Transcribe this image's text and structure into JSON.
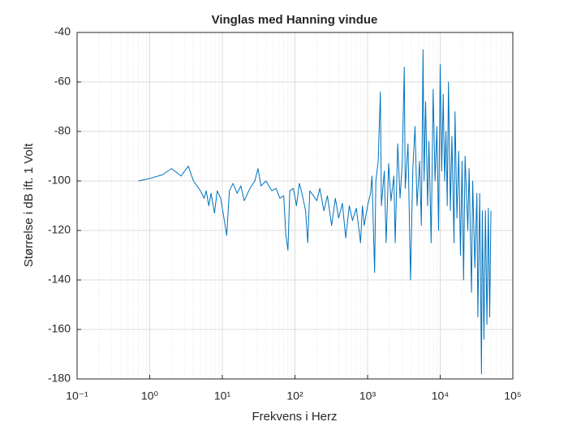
{
  "chart_data": {
    "type": "line",
    "title": "Vinglas med Hanning vindue",
    "xlabel": "Frekvens i Herz",
    "ylabel": "Størrelse i dB ift. 1 Volt",
    "xscale": "log",
    "grid": true,
    "minor_grid": true,
    "color": "#0072bd",
    "xlim": [
      0.1,
      100000
    ],
    "xticks": [
      {
        "value": 0.1,
        "label": "10⁻¹"
      },
      {
        "value": 1,
        "label": "10⁰"
      },
      {
        "value": 10,
        "label": "10¹"
      },
      {
        "value": 100,
        "label": "10²"
      },
      {
        "value": 1000,
        "label": "10³"
      },
      {
        "value": 10000,
        "label": "10⁴"
      },
      {
        "value": 100000,
        "label": "10⁵"
      }
    ],
    "ylim": [
      -180,
      -40
    ],
    "yticks": [
      -40,
      -60,
      -80,
      -100,
      -120,
      -140,
      -160,
      -180
    ],
    "x": [
      0.7,
      1.0,
      1.5,
      2.0,
      2.7,
      3.4,
      4.0,
      5.0,
      5.6,
      6.0,
      6.5,
      7.0,
      7.8,
      8.5,
      9.5,
      11.5,
      12.5,
      14,
      16,
      18,
      20,
      24,
      28,
      31,
      34,
      40,
      48,
      55,
      62,
      70,
      75,
      80,
      85,
      95,
      105,
      115,
      125,
      140,
      150,
      160,
      180,
      200,
      220,
      250,
      280,
      320,
      360,
      400,
      450,
      500,
      560,
      620,
      700,
      800,
      850,
      900,
      1000,
      1100,
      1150,
      1250,
      1300,
      1400,
      1500,
      1550,
      1700,
      1800,
      1950,
      2100,
      2300,
      2400,
      2600,
      2800,
      3000,
      3200,
      3300,
      3600,
      3900,
      4200,
      4500,
      4800,
      5200,
      5500,
      5800,
      6000,
      6300,
      6700,
      7000,
      7500,
      8000,
      8500,
      9000,
      9500,
      10000,
      10500,
      11000,
      11500,
      12000,
      12500,
      13000,
      13800,
      14500,
      15500,
      16000,
      17000,
      18000,
      19000,
      20000,
      21000,
      22000,
      24000,
      25000,
      27000,
      28000,
      30000,
      32000,
      33000,
      35000,
      37000,
      38000,
      40000,
      42000,
      44000,
      46000,
      48000,
      50000
    ],
    "values": [
      -100,
      -99,
      -97.5,
      -95,
      -98,
      -94,
      -100,
      -104,
      -107,
      -104,
      -110,
      -105,
      -113,
      -104,
      -107,
      -122,
      -104,
      -101,
      -105,
      -102,
      -108,
      -103,
      -100,
      -95,
      -102,
      -100,
      -104,
      -103,
      -107,
      -106,
      -122,
      -128,
      -104,
      -103,
      -110,
      -101,
      -105,
      -112,
      -125,
      -104,
      -106,
      -108,
      -103,
      -112,
      -106,
      -118,
      -107,
      -115,
      -109,
      -123,
      -110,
      -116,
      -111,
      -125,
      -110,
      -118,
      -110,
      -105,
      -98,
      -137,
      -100,
      -92,
      -64,
      -110,
      -96,
      -125,
      -93,
      -108,
      -98,
      -125,
      -85,
      -107,
      -93,
      -54,
      -103,
      -85,
      -140,
      -95,
      -78,
      -110,
      -92,
      -118,
      -47,
      -100,
      -68,
      -110,
      -84,
      -125,
      -63,
      -100,
      -78,
      -120,
      -53,
      -96,
      -65,
      -100,
      -80,
      -110,
      -60,
      -112,
      -82,
      -125,
      -72,
      -115,
      -88,
      -130,
      -92,
      -140,
      -90,
      -120,
      -95,
      -145,
      -100,
      -135,
      -105,
      -155,
      -105,
      -178,
      -112,
      -164,
      -112,
      -158,
      -111,
      -155,
      -112
    ]
  }
}
